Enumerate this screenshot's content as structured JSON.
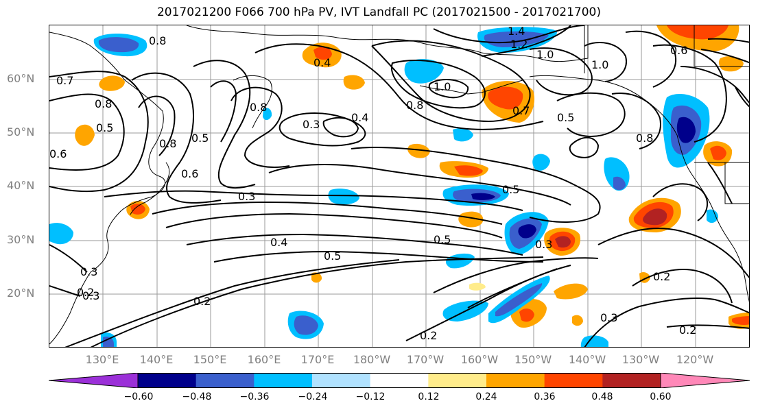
{
  "title": "2017021200 F066 700 hPa PV, IVT Landfall PC (2017021500 - 2017021700)",
  "lat_labels": [
    "60°N",
    "50°N",
    "40°N",
    "30°N",
    "20°N"
  ],
  "lon_labels": [
    "130°E",
    "140°E",
    "150°E",
    "160°E",
    "170°E",
    "180°W",
    "170°W",
    "160°W",
    "150°W",
    "140°W",
    "130°W",
    "120°W"
  ],
  "contour_labels": [
    "0.8",
    "0.7",
    "0.8",
    "0.5",
    "0.6",
    "0.6",
    "0.5",
    "0.8",
    "0.8",
    "0.3",
    "0.4",
    "0.4",
    "1.0",
    "0.8",
    "1.4",
    "1.2",
    "1.0",
    "1.0",
    "0.7",
    "0.5",
    "0.8",
    "0.6",
    "0.3",
    "0.5",
    "0.4",
    "0.5",
    "0.3",
    "0.2",
    "0.3",
    "0.3",
    "0.2",
    "0.2",
    "0.2",
    "0.5",
    "0.3",
    "0.2"
  ],
  "colorbar": {
    "ticks": [
      "−0.60",
      "−0.48",
      "−0.36",
      "−0.24",
      "−0.12",
      "0.12",
      "0.24",
      "0.36",
      "0.48",
      "0.60"
    ],
    "colors": [
      "#9b30d8",
      "#00008b",
      "#3a5fcd",
      "#00bfff",
      "#b0e2ff",
      "#ffffff",
      "#ffec8b",
      "#ffa500",
      "#ff4500",
      "#b22222",
      "#ff88b8"
    ]
  }
}
